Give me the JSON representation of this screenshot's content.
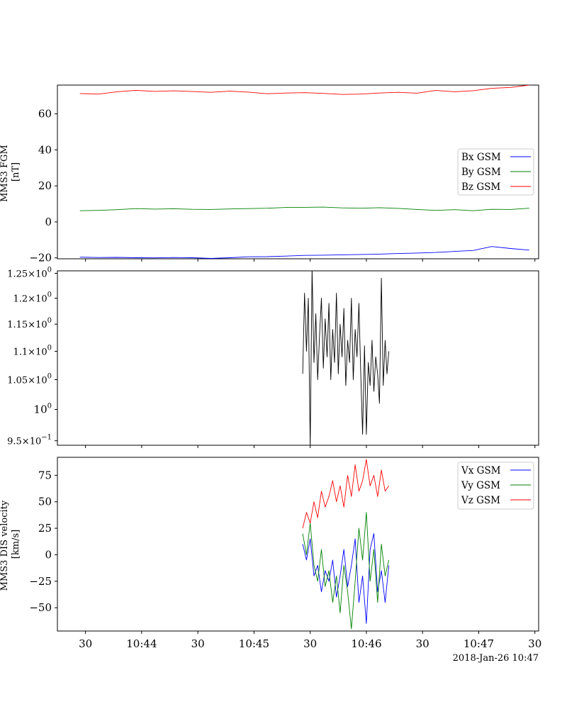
{
  "chart_data": [
    {
      "type": "line",
      "ylabel": [
        "MMS3 FGM",
        "[nT]"
      ],
      "ylim": [
        -20.5,
        76
      ],
      "yticks": [
        -20,
        0,
        20,
        40,
        60
      ],
      "ytick_labels": [
        "−20",
        "0",
        "20",
        "40",
        "60"
      ],
      "x_range": [
        "10:43:15",
        "10:47:32"
      ],
      "legend": {
        "placement": "center-right",
        "entries": [
          "Bx GSM",
          "By GSM",
          "Bz GSM"
        ]
      },
      "series": [
        {
          "name": "Bx GSM",
          "color": "#0000ff",
          "x": [
            "10:43:27",
            "10:43:37",
            "10:43:47",
            "10:43:57",
            "10:44:07",
            "10:44:17",
            "10:44:27",
            "10:44:37",
            "10:44:47",
            "10:44:57",
            "10:45:07",
            "10:45:17",
            "10:45:27",
            "10:45:37",
            "10:45:47",
            "10:45:57",
            "10:46:07",
            "10:46:17",
            "10:46:27",
            "10:46:37",
            "10:46:47",
            "10:46:57",
            "10:47:07",
            "10:47:17",
            "10:47:27"
          ],
          "values": [
            -19.6,
            -19.8,
            -19.7,
            -19.9,
            -20.0,
            -19.8,
            -19.9,
            -20.3,
            -19.9,
            -19.4,
            -19.3,
            -19.0,
            -18.6,
            -18.5,
            -18.3,
            -18.1,
            -17.9,
            -17.6,
            -17.3,
            -17.0,
            -16.4,
            -15.9,
            -13.7,
            -14.8,
            -15.7
          ]
        },
        {
          "name": "By GSM",
          "color": "#008000",
          "x": [
            "10:43:27",
            "10:43:37",
            "10:43:47",
            "10:43:57",
            "10:44:07",
            "10:44:17",
            "10:44:27",
            "10:44:37",
            "10:44:47",
            "10:44:57",
            "10:45:07",
            "10:45:17",
            "10:45:27",
            "10:45:37",
            "10:45:47",
            "10:45:57",
            "10:46:07",
            "10:46:17",
            "10:46:27",
            "10:46:37",
            "10:46:47",
            "10:46:57",
            "10:47:07",
            "10:47:17",
            "10:47:27"
          ],
          "values": [
            6.2,
            6.4,
            6.8,
            7.4,
            7.1,
            7.3,
            7.0,
            6.9,
            7.2,
            7.4,
            7.6,
            8.0,
            8.1,
            8.2,
            7.8,
            7.6,
            7.9,
            7.5,
            6.9,
            6.4,
            6.8,
            6.2,
            7.0,
            6.9,
            7.6
          ]
        },
        {
          "name": "Bz GSM",
          "color": "#ff0000",
          "x": [
            "10:43:27",
            "10:43:37",
            "10:43:47",
            "10:43:57",
            "10:44:07",
            "10:44:17",
            "10:44:27",
            "10:44:37",
            "10:44:47",
            "10:44:57",
            "10:45:07",
            "10:45:17",
            "10:45:27",
            "10:45:37",
            "10:45:47",
            "10:45:57",
            "10:46:07",
            "10:46:17",
            "10:46:27",
            "10:46:37",
            "10:46:47",
            "10:46:57",
            "10:47:07",
            "10:47:17",
            "10:47:27"
          ],
          "values": [
            71.3,
            71.0,
            72.3,
            73.1,
            72.5,
            72.8,
            72.4,
            72.0,
            72.6,
            72.1,
            71.2,
            71.6,
            71.8,
            71.4,
            70.8,
            71.0,
            71.6,
            72.0,
            71.5,
            73.0,
            72.3,
            72.9,
            74.2,
            74.7,
            76.0
          ]
        }
      ]
    },
    {
      "type": "line",
      "yscale": "log",
      "ylim": [
        0.943,
        1.255
      ],
      "yticks": [
        0.95,
        1.0,
        1.05,
        1.1,
        1.15,
        1.2,
        1.25
      ],
      "ytick_labels": [
        {
          "m": "9.5",
          "e": "−1"
        },
        {
          "m": "",
          "e": "0"
        },
        {
          "m": "1.05",
          "e": "0"
        },
        {
          "m": "1.1",
          "e": "0"
        },
        {
          "m": "1.15",
          "e": "0"
        },
        {
          "m": "1.2",
          "e": "0"
        },
        {
          "m": "1.25",
          "e": "0"
        }
      ],
      "series": [
        {
          "color": "#000000",
          "x": [
            "10:45:26",
            "10:45:27",
            "10:45:28",
            "10:45:29",
            "10:45:30",
            "10:45:31",
            "10:45:32",
            "10:45:33",
            "10:45:34",
            "10:45:35",
            "10:45:36",
            "10:45:37",
            "10:45:38",
            "10:45:39",
            "10:45:40",
            "10:45:41",
            "10:45:42",
            "10:45:43",
            "10:45:44",
            "10:45:45",
            "10:45:46",
            "10:45:47",
            "10:45:48",
            "10:45:49",
            "10:45:50",
            "10:45:51",
            "10:45:52",
            "10:45:53",
            "10:45:54",
            "10:45:55",
            "10:45:56",
            "10:45:57",
            "10:45:58",
            "10:45:59",
            "10:46:00",
            "10:46:01",
            "10:46:02",
            "10:46:03",
            "10:46:04",
            "10:46:05",
            "10:46:06",
            "10:46:07",
            "10:46:08",
            "10:46:09",
            "10:46:10",
            "10:46:11",
            "10:46:12"
          ],
          "values": [
            1.06,
            1.21,
            1.1,
            1.2,
            0.94,
            1.26,
            1.08,
            1.17,
            1.05,
            1.13,
            1.2,
            1.07,
            1.16,
            1.09,
            1.19,
            1.05,
            1.14,
            1.08,
            1.21,
            1.06,
            1.15,
            1.09,
            1.18,
            1.04,
            1.12,
            1.08,
            1.2,
            1.05,
            1.14,
            1.09,
            1.19,
            1.06,
            0.96,
            1.11,
            0.96,
            1.08,
            1.04,
            1.12,
            1.03,
            1.09,
            1.06,
            1.01,
            1.24,
            1.04,
            1.12,
            1.06,
            1.1
          ]
        }
      ]
    },
    {
      "type": "line",
      "ylabel": [
        "MMS3 DIS velocity",
        "[km/s]"
      ],
      "ylim": [
        -72,
        92
      ],
      "yticks": [
        -50,
        -25,
        0,
        25,
        50,
        75
      ],
      "ytick_labels": [
        "−50",
        "−25",
        "0",
        "25",
        "50",
        "75"
      ],
      "legend": {
        "placement": "top-right",
        "entries": [
          "Vx GSM",
          "Vy GSM",
          "Vz GSM"
        ]
      },
      "series": [
        {
          "name": "Vx GSM",
          "color": "#0000ff",
          "x": [
            "10:45:26",
            "10:45:28",
            "10:45:30",
            "10:45:32",
            "10:45:34",
            "10:45:36",
            "10:45:38",
            "10:45:40",
            "10:45:42",
            "10:45:44",
            "10:45:46",
            "10:45:48",
            "10:45:50",
            "10:45:52",
            "10:45:54",
            "10:45:56",
            "10:45:58",
            "10:46:00",
            "10:46:02",
            "10:46:04",
            "10:46:06",
            "10:46:08",
            "10:46:10",
            "10:46:12"
          ],
          "values": [
            10,
            -5,
            15,
            -20,
            -10,
            -35,
            -15,
            -25,
            -5,
            -40,
            -20,
            5,
            -30,
            -10,
            15,
            -45,
            -20,
            -65,
            5,
            20,
            -35,
            -15,
            -45,
            -10
          ]
        },
        {
          "name": "Vy GSM",
          "color": "#008000",
          "x": [
            "10:45:26",
            "10:45:28",
            "10:45:30",
            "10:45:32",
            "10:45:34",
            "10:45:36",
            "10:45:38",
            "10:45:40",
            "10:45:42",
            "10:45:44",
            "10:45:46",
            "10:45:48",
            "10:45:50",
            "10:45:52",
            "10:45:54",
            "10:45:56",
            "10:45:58",
            "10:46:00",
            "10:46:02",
            "10:46:04",
            "10:46:06",
            "10:46:08",
            "10:46:10",
            "10:46:12"
          ],
          "values": [
            20,
            0,
            30,
            -10,
            -25,
            5,
            -30,
            -15,
            -45,
            -20,
            -55,
            -10,
            -35,
            -70,
            -25,
            25,
            -5,
            40,
            -25,
            5,
            -45,
            10,
            -20,
            -5
          ]
        },
        {
          "name": "Vz GSM",
          "color": "#ff0000",
          "x": [
            "10:45:26",
            "10:45:28",
            "10:45:30",
            "10:45:32",
            "10:45:34",
            "10:45:36",
            "10:45:38",
            "10:45:40",
            "10:45:42",
            "10:45:44",
            "10:45:46",
            "10:45:48",
            "10:45:50",
            "10:45:52",
            "10:45:54",
            "10:45:56",
            "10:45:58",
            "10:46:00",
            "10:46:02",
            "10:46:04",
            "10:46:06",
            "10:46:08",
            "10:46:10",
            "10:46:12"
          ],
          "values": [
            25,
            40,
            30,
            50,
            35,
            60,
            45,
            55,
            70,
            50,
            65,
            45,
            75,
            55,
            85,
            60,
            70,
            90,
            65,
            75,
            55,
            80,
            60,
            65
          ]
        }
      ]
    }
  ],
  "xaxis": {
    "range_sec": [
      15,
      272
    ],
    "ticks": [
      {
        "t": 30,
        "label": "30"
      },
      {
        "t": 60,
        "label": "10:44"
      },
      {
        "t": 90,
        "label": "30"
      },
      {
        "t": 120,
        "label": "10:45"
      },
      {
        "t": 150,
        "label": "30"
      },
      {
        "t": 180,
        "label": "10:46"
      },
      {
        "t": 210,
        "label": "30"
      },
      {
        "t": 240,
        "label": "10:47"
      },
      {
        "t": 270,
        "label": "30"
      }
    ],
    "time_origin_label": "10:43:00",
    "date_label": "2018-Jan-26 10:47"
  }
}
